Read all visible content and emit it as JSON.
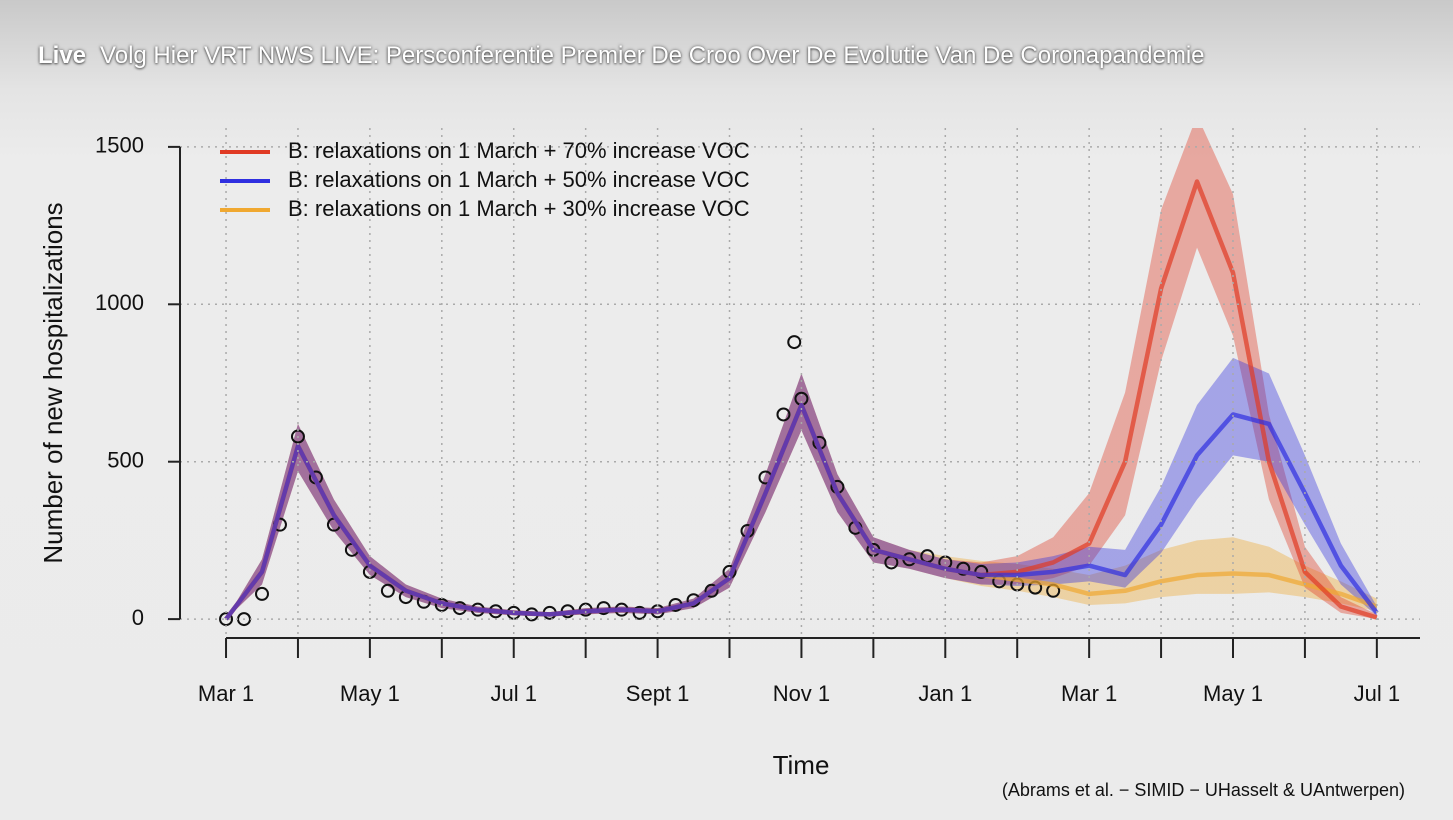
{
  "header": {
    "badge": "Live",
    "title": "Volg Hier VRT NWS LIVE: Persconferentie Premier De Croo Over De Evolutie Van De Coronapandemie"
  },
  "chart_data": {
    "type": "line",
    "ylabel": "Number of new hospitalizations",
    "xlabel": "Time",
    "caption": "(Abrams et al. − SIMID − UHasselt & UAntwerpen)",
    "grid": true,
    "legend": "top-left",
    "xlim": [
      -0.64,
      16.6
    ],
    "ylim": [
      -60,
      1560
    ],
    "yticks": [
      0,
      500,
      1000,
      1500
    ],
    "xticks": [
      {
        "value": 0,
        "label": "Mar 1"
      },
      {
        "value": 2,
        "label": "May 1"
      },
      {
        "value": 4,
        "label": "Jul 1"
      },
      {
        "value": 6,
        "label": "Sept 1"
      },
      {
        "value": 8,
        "label": "Nov 1"
      },
      {
        "value": 10,
        "label": "Jan 1"
      },
      {
        "value": 12,
        "label": "Mar 1"
      },
      {
        "value": 14,
        "label": "May 1"
      },
      {
        "value": 16,
        "label": "Jul 1"
      }
    ],
    "xminor_ticks": [
      1,
      3,
      5,
      7,
      9,
      11,
      13,
      15
    ],
    "x": [
      0,
      0.5,
      1,
      1.5,
      2,
      2.5,
      3,
      3.5,
      4,
      4.5,
      5,
      5.5,
      6,
      6.5,
      7,
      7.5,
      8,
      8.5,
      9,
      9.5,
      10,
      10.5,
      11,
      11.5,
      12,
      12.5,
      13,
      13.5,
      14,
      14.5,
      15,
      15.5,
      16
    ],
    "series": [
      {
        "name": "B: relaxations on 1 March + 70% increase VOC",
        "color": "#e03a24",
        "values": [
          0,
          150,
          550,
          330,
          170,
          90,
          50,
          30,
          20,
          15,
          25,
          30,
          25,
          50,
          130,
          400,
          680,
          400,
          220,
          190,
          160,
          140,
          150,
          180,
          240,
          500,
          1050,
          1390,
          1100,
          500,
          150,
          40,
          5
        ],
        "lower": [
          0,
          110,
          470,
          280,
          140,
          70,
          35,
          20,
          12,
          8,
          15,
          20,
          15,
          35,
          100,
          340,
          600,
          340,
          180,
          160,
          130,
          110,
          110,
          130,
          170,
          330,
          820,
          1180,
          900,
          380,
          100,
          20,
          0
        ],
        "upper": [
          0,
          190,
          620,
          380,
          200,
          110,
          65,
          40,
          28,
          22,
          35,
          40,
          35,
          65,
          160,
          460,
          780,
          460,
          260,
          220,
          190,
          180,
          200,
          260,
          400,
          720,
          1300,
          1600,
          1350,
          650,
          230,
          70,
          15
        ]
      },
      {
        "name": "B: relaxations on 1 March + 50% increase VOC",
        "color": "#2f2fe0",
        "values": [
          0,
          150,
          550,
          330,
          170,
          90,
          50,
          30,
          20,
          15,
          25,
          30,
          25,
          50,
          130,
          400,
          680,
          400,
          220,
          190,
          160,
          140,
          140,
          150,
          170,
          140,
          300,
          520,
          650,
          620,
          400,
          170,
          20
        ],
        "lower": [
          0,
          110,
          470,
          280,
          140,
          70,
          35,
          20,
          12,
          8,
          15,
          20,
          15,
          35,
          100,
          340,
          600,
          340,
          180,
          160,
          130,
          110,
          105,
          110,
          120,
          100,
          210,
          380,
          520,
          500,
          300,
          110,
          10
        ],
        "upper": [
          0,
          190,
          620,
          380,
          200,
          110,
          65,
          40,
          28,
          22,
          35,
          40,
          35,
          65,
          160,
          460,
          780,
          460,
          260,
          220,
          190,
          175,
          180,
          200,
          230,
          220,
          420,
          680,
          830,
          780,
          520,
          240,
          40
        ]
      },
      {
        "name": "B: relaxations on 1 March + 30% increase VOC",
        "color": "#f0a830",
        "values": [
          0,
          150,
          550,
          330,
          170,
          90,
          50,
          30,
          20,
          15,
          25,
          30,
          25,
          50,
          130,
          400,
          680,
          400,
          220,
          190,
          160,
          140,
          125,
          110,
          80,
          90,
          120,
          140,
          145,
          140,
          110,
          80,
          40
        ],
        "lower": [
          0,
          110,
          470,
          280,
          140,
          70,
          35,
          20,
          12,
          8,
          15,
          20,
          15,
          35,
          100,
          340,
          600,
          340,
          180,
          160,
          130,
          105,
          90,
          70,
          45,
          50,
          70,
          80,
          80,
          85,
          70,
          50,
          25
        ],
        "upper": [
          0,
          190,
          620,
          380,
          200,
          110,
          65,
          40,
          28,
          22,
          35,
          40,
          35,
          65,
          160,
          460,
          780,
          460,
          260,
          220,
          200,
          185,
          175,
          160,
          140,
          170,
          220,
          250,
          260,
          230,
          170,
          120,
          65
        ]
      }
    ],
    "observed": {
      "x": [
        0,
        0.25,
        0.5,
        0.75,
        1,
        1.25,
        1.5,
        1.75,
        2,
        2.25,
        2.5,
        2.75,
        3,
        3.25,
        3.5,
        3.75,
        4,
        4.25,
        4.5,
        4.75,
        5,
        5.25,
        5.5,
        5.75,
        6,
        6.25,
        6.5,
        6.75,
        7,
        7.25,
        7.5,
        7.75,
        7.9,
        8,
        8.25,
        8.5,
        8.75,
        9,
        9.25,
        9.5,
        9.75,
        10,
        10.25,
        10.5,
        10.75,
        11,
        11.25,
        11.5
      ],
      "values": [
        0,
        0,
        80,
        300,
        580,
        450,
        300,
        220,
        150,
        90,
        70,
        55,
        45,
        35,
        30,
        25,
        20,
        15,
        20,
        25,
        30,
        35,
        30,
        20,
        25,
        45,
        60,
        90,
        150,
        280,
        450,
        650,
        880,
        700,
        560,
        420,
        290,
        220,
        180,
        190,
        200,
        180,
        160,
        150,
        120,
        110,
        100,
        90
      ]
    }
  }
}
